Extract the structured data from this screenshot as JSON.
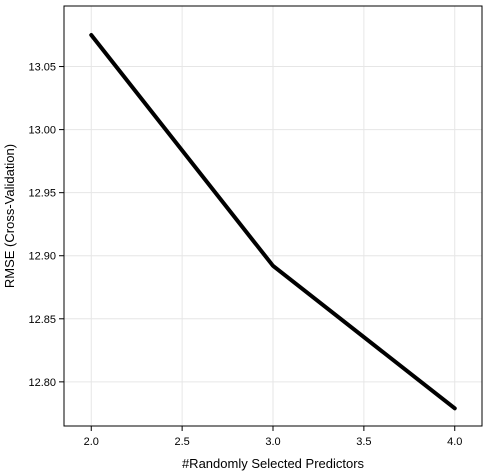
{
  "chart_data": {
    "type": "line",
    "title": "",
    "xlabel": "#Randomly Selected Predictors",
    "ylabel": "RMSE (Cross-Validation)",
    "x": [
      2,
      3,
      4
    ],
    "series": [
      {
        "values": [
          13.075,
          12.892,
          12.779
        ]
      }
    ],
    "xlim": [
      1.85,
      4.15
    ],
    "ylim": [
      12.765,
      13.098
    ],
    "xticks": [
      2.0,
      2.5,
      3.0,
      3.5,
      4.0
    ],
    "xtick_labels": [
      "2.0",
      "2.5",
      "3.0",
      "3.5",
      "4.0"
    ],
    "yticks": [
      12.8,
      12.85,
      12.9,
      12.95,
      13.0,
      13.05
    ],
    "ytick_labels": [
      "12.80",
      "12.85",
      "12.90",
      "12.95",
      "13.00",
      "13.05"
    ],
    "grid": true,
    "line_color": "#000000",
    "grid_color": "#e6e6e6"
  }
}
